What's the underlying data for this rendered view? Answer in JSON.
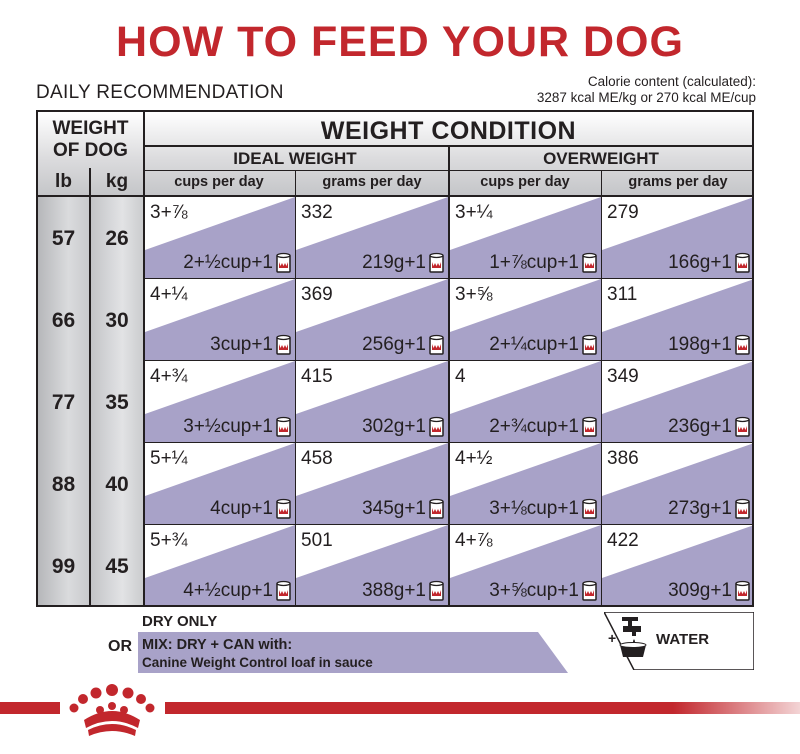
{
  "title": "HOW TO FEED YOUR DOG",
  "daily_label": "DAILY RECOMMENDATION",
  "calorie": {
    "line1": "Calorie content (calculated):",
    "line2": "3287 kcal ME/kg or 270 kcal ME/cup"
  },
  "header": {
    "weight_of_dog_1": "WEIGHT",
    "weight_of_dog_2": "OF DOG",
    "lb": "lb",
    "kg": "kg",
    "weight_condition": "WEIGHT CONDITION",
    "ideal": "IDEAL WEIGHT",
    "overweight": "OVERWEIGHT",
    "cups": "cups per day",
    "grams": "grams per day"
  },
  "rows": [
    {
      "lb": "57",
      "kg": "26",
      "cells": [
        {
          "top": "3+⅞",
          "bot": "2+½cup+1"
        },
        {
          "top": "332",
          "bot": "219g+1"
        },
        {
          "top": "3+¼",
          "bot": "1+⅞cup+1"
        },
        {
          "top": "279",
          "bot": "166g+1"
        }
      ]
    },
    {
      "lb": "66",
      "kg": "30",
      "cells": [
        {
          "top": "4+¼",
          "bot": "3cup+1"
        },
        {
          "top": "369",
          "bot": "256g+1"
        },
        {
          "top": "3+⅝",
          "bot": "2+¼cup+1"
        },
        {
          "top": "311",
          "bot": "198g+1"
        }
      ]
    },
    {
      "lb": "77",
      "kg": "35",
      "cells": [
        {
          "top": "4+¾",
          "bot": "3+½cup+1"
        },
        {
          "top": "415",
          "bot": "302g+1"
        },
        {
          "top": "4",
          "bot": "2+¾cup+1"
        },
        {
          "top": "349",
          "bot": "236g+1"
        }
      ]
    },
    {
      "lb": "88",
      "kg": "40",
      "cells": [
        {
          "top": "5+¼",
          "bot": "4cup+1"
        },
        {
          "top": "458",
          "bot": "345g+1"
        },
        {
          "top": "4+½",
          "bot": "3+⅛cup+1"
        },
        {
          "top": "386",
          "bot": "273g+1"
        }
      ]
    },
    {
      "lb": "99",
      "kg": "45",
      "cells": [
        {
          "top": "5+¾",
          "bot": "4+½cup+1"
        },
        {
          "top": "501",
          "bot": "388g+1"
        },
        {
          "top": "4+⅞",
          "bot": "3+⅝cup+1"
        },
        {
          "top": "422",
          "bot": "309g+1"
        }
      ]
    }
  ],
  "legend": {
    "dry_only": "DRY ONLY",
    "or": "OR",
    "mix": "MIX: DRY + CAN with:",
    "product": "Canine Weight Control loaf in sauce",
    "water": "WATER",
    "plus": "+"
  },
  "colors": {
    "brand_red": "#c2272d",
    "mix_purple": "#a8a2c8",
    "text": "#231f20"
  },
  "icons": [
    "can-icon",
    "water-tap-bowl-icon",
    "royal-canin-crown-logo"
  ]
}
